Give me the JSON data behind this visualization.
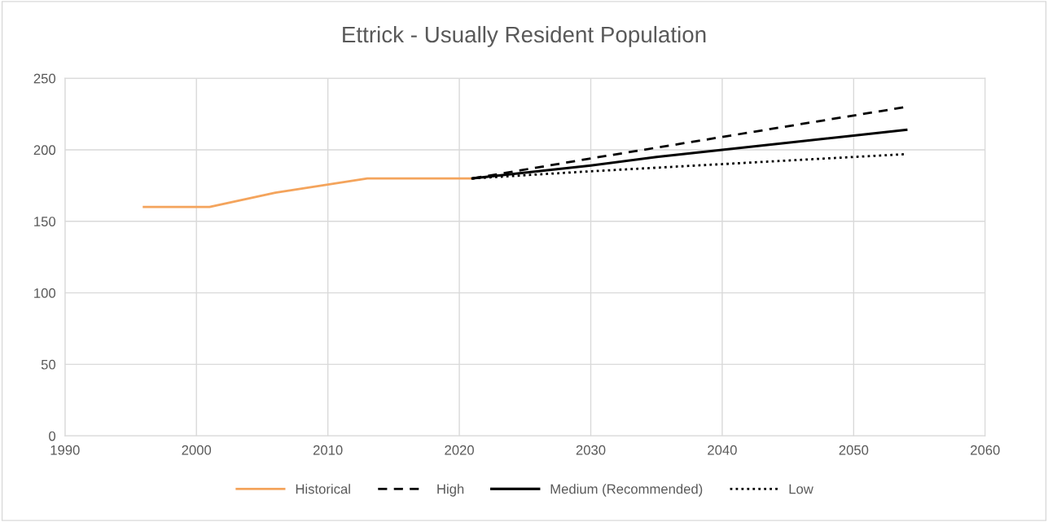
{
  "chart_data": {
    "type": "line",
    "title": "Ettrick - Usually Resident Population",
    "series": [
      {
        "name": "Historical",
        "color": "#f4a45c",
        "line_style": "solid",
        "x": [
          1996,
          2001,
          2006,
          2013,
          2021
        ],
        "values": [
          160,
          160,
          170,
          180,
          180
        ]
      },
      {
        "name": "High",
        "color": "#000000",
        "line_style": "dashed",
        "x": [
          2021,
          2030,
          2040,
          2050,
          2054
        ],
        "values": [
          180,
          194,
          209,
          224,
          230
        ]
      },
      {
        "name": "Medium (Recommended)",
        "color": "#000000",
        "line_style": "solid",
        "x": [
          2021,
          2025,
          2030,
          2035,
          2040,
          2045,
          2050,
          2054
        ],
        "values": [
          180,
          184,
          189,
          195,
          200,
          205,
          210,
          214
        ]
      },
      {
        "name": "Low",
        "color": "#000000",
        "line_style": "dotted",
        "x": [
          2021,
          2030,
          2040,
          2050,
          2054
        ],
        "values": [
          180,
          185,
          190,
          195,
          197
        ]
      }
    ],
    "xlim": [
      1990,
      2060
    ],
    "xticks": [
      1990,
      2000,
      2010,
      2020,
      2030,
      2040,
      2050,
      2060
    ],
    "ylim": [
      0,
      250
    ],
    "yticks": [
      0,
      50,
      100,
      150,
      200,
      250
    ],
    "grid": true,
    "legend": "bottom",
    "marker": "none"
  }
}
